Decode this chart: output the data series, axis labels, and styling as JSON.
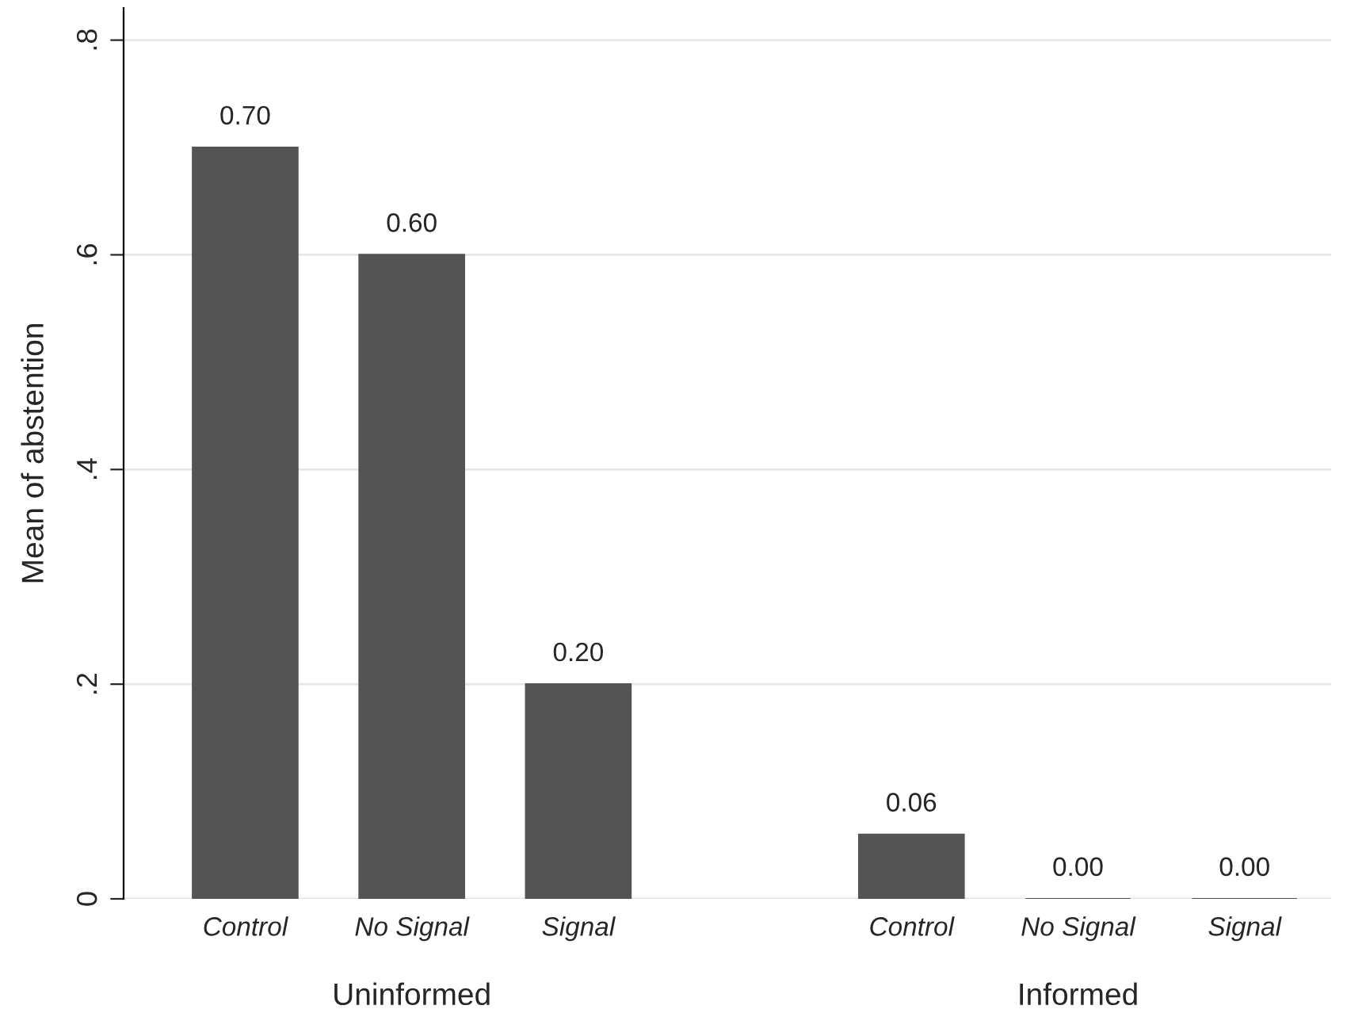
{
  "chart_data": {
    "type": "bar",
    "ylabel": "Mean of abstention",
    "categories": [
      "Control",
      "No Signal",
      "Signal",
      null,
      "Control",
      "No Signal",
      "Signal"
    ],
    "values": [
      0.7,
      0.6,
      0.2,
      null,
      0.06,
      0.0,
      0.0
    ],
    "value_labels": [
      "0.70",
      "0.60",
      "0.20",
      null,
      "0.06",
      "0.00",
      "0.00"
    ],
    "color": "#545454",
    "ylim": [
      0,
      0.83
    ],
    "yticks": [
      {
        "value": 0,
        "label": "0"
      },
      {
        "value": 0.2,
        "label": ".2"
      },
      {
        "value": 0.4,
        "label": ".4"
      },
      {
        "value": 0.6,
        "label": ".6"
      },
      {
        "value": 0.8,
        "label": ".8"
      }
    ],
    "grid": "y",
    "annotations": [
      "Uninformed",
      "Informed"
    ]
  }
}
